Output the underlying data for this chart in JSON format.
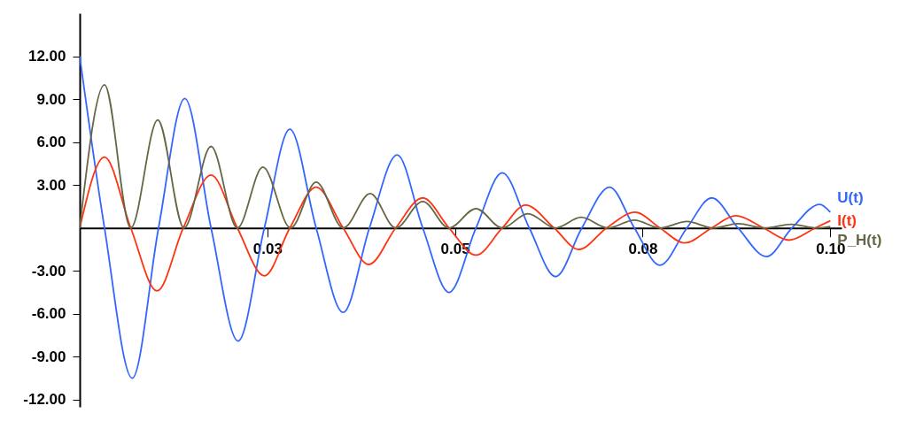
{
  "chart_data": {
    "type": "line",
    "xlim": [
      0,
      0.1015
    ],
    "ylim": [
      -12.5,
      15
    ],
    "xticks": [
      {
        "value": 0.025,
        "label": "0.03"
      },
      {
        "value": 0.05,
        "label": "0.05"
      },
      {
        "value": 0.075,
        "label": "0.08"
      },
      {
        "value": 0.1,
        "label": "0.10"
      }
    ],
    "yticks": [
      {
        "value": -12,
        "label": "-12.00"
      },
      {
        "value": -9,
        "label": "-9.00"
      },
      {
        "value": -6,
        "label": "-6.00"
      },
      {
        "value": -3,
        "label": "-3.00"
      },
      {
        "value": 3,
        "label": "3.00"
      },
      {
        "value": 6,
        "label": "6.00"
      },
      {
        "value": 9,
        "label": "9.00"
      },
      {
        "value": 12,
        "label": "12.00"
      }
    ],
    "grid": false,
    "series": [
      {
        "name": "U(t)",
        "color": "#3366ff",
        "x": [
          0,
          0.0033,
          0.007,
          0.0105,
          0.014,
          0.0175,
          0.0211,
          0.0246,
          0.028,
          0.0315,
          0.0351,
          0.0386,
          0.0423,
          0.0457,
          0.0492,
          0.0528,
          0.0563,
          0.0599,
          0.0634,
          0.0669,
          0.0706,
          0.0739,
          0.0773,
          0.0809,
          0.0842,
          0.0877,
          0.0915,
          0.0949,
          0.0986,
          0.1
        ],
        "values": [
          12,
          0,
          -10.5,
          0,
          9.05,
          0,
          -7.9,
          0,
          6.9,
          0,
          -5.9,
          0,
          5.1,
          0,
          -4.5,
          0,
          3.85,
          0,
          -3.4,
          0,
          2.85,
          0,
          -2.6,
          0,
          2.1,
          0,
          -2.0,
          0,
          1.65,
          1.1
        ]
      },
      {
        "name": "I(t)",
        "color": "#ff3311",
        "x": [
          0,
          0.0033,
          0.0068,
          0.0103,
          0.0138,
          0.0175,
          0.021,
          0.0246,
          0.028,
          0.0315,
          0.0351,
          0.0385,
          0.0421,
          0.0457,
          0.0492,
          0.0528,
          0.0563,
          0.0594,
          0.0632,
          0.0665,
          0.0702,
          0.074,
          0.0773,
          0.0806,
          0.0842,
          0.0874,
          0.0911,
          0.0945,
          0.098,
          0.1
        ],
        "values": [
          0,
          4.95,
          0,
          -4.4,
          0,
          3.7,
          0,
          -3.35,
          0,
          2.85,
          0,
          -2.55,
          0,
          2.1,
          0,
          -1.9,
          0,
          1.6,
          0,
          -1.5,
          0,
          1.1,
          0,
          -1.05,
          0,
          0.85,
          0,
          -0.85,
          0,
          0.5
        ]
      },
      {
        "name": "P_H(t)",
        "color": "#666644",
        "x": [
          0,
          0.0033,
          0.0068,
          0.0104,
          0.0139,
          0.0175,
          0.021,
          0.0244,
          0.0281,
          0.0315,
          0.0351,
          0.0387,
          0.0421,
          0.0457,
          0.0492,
          0.0528,
          0.0563,
          0.0597,
          0.0634,
          0.0668,
          0.0704,
          0.0739,
          0.0773,
          0.0809,
          0.0844,
          0.0877,
          0.0913,
          0.0948,
          0.0982,
          0.1
        ],
        "values": [
          0,
          10.0,
          0,
          7.55,
          0,
          5.7,
          0,
          4.25,
          0,
          3.2,
          0,
          2.4,
          0,
          1.85,
          0,
          1.35,
          0,
          1.0,
          0,
          0.75,
          0,
          0.55,
          0,
          0.45,
          0,
          0.3,
          0,
          0.25,
          0,
          0.1
        ]
      }
    ]
  }
}
